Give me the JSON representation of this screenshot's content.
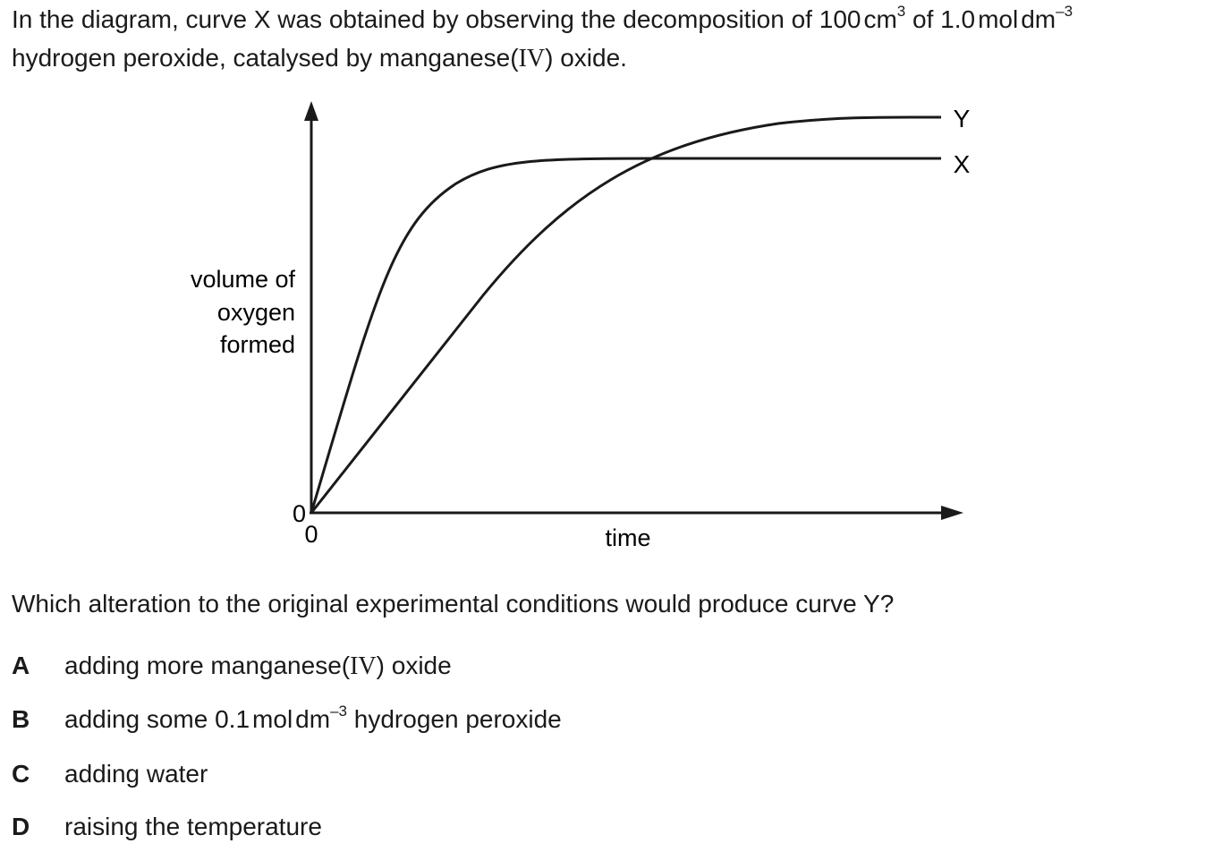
{
  "intro": {
    "line1_a": "In the diagram, curve X was obtained by observing the decomposition of 100",
    "line1_unit1": "cm",
    "line1_unit1_sup": "3",
    "line1_b": "of 1.0",
    "line1_unit2": "mol",
    "line1_unit3": "dm",
    "line1_unit3_sup": "–3",
    "line2_a": "hydrogen peroxide, catalysed by manganese(",
    "line2_roman": "IV",
    "line2_b": ") oxide."
  },
  "chart_data": {
    "type": "line",
    "ylabel_lines": [
      "volume of",
      "oxygen",
      "formed"
    ],
    "xlabel": "time",
    "y_origin_label": "0",
    "x_origin_label": "0",
    "series": [
      {
        "name": "X",
        "x": [
          0,
          0.5,
          1,
          1.5,
          2,
          3,
          4,
          5,
          6,
          8,
          10
        ],
        "y": [
          0,
          0.45,
          0.72,
          0.86,
          0.93,
          0.985,
          0.995,
          1.0,
          1.0,
          1.0,
          1.0
        ]
      },
      {
        "name": "Y",
        "x": [
          0,
          1,
          2,
          3,
          4,
          5,
          6,
          7,
          8,
          9,
          10
        ],
        "y": [
          0,
          0.25,
          0.5,
          0.74,
          0.93,
          1.05,
          1.1,
          1.12,
          1.13,
          1.135,
          1.135
        ]
      }
    ],
    "axis_ticks_shown": false,
    "grid": false
  },
  "question": "Which alteration to the original experimental conditions would produce curve Y?",
  "options": [
    {
      "letter": "A",
      "text_a": "adding more manganese(",
      "roman": "IV",
      "text_b": ") oxide"
    },
    {
      "letter": "B",
      "text_a": "adding some 0.1",
      "unit1": "mol",
      "unit2": "dm",
      "unit2_sup": "–3",
      "text_b": "hydrogen peroxide"
    },
    {
      "letter": "C",
      "text": "adding water"
    },
    {
      "letter": "D",
      "text": "raising the temperature"
    }
  ]
}
